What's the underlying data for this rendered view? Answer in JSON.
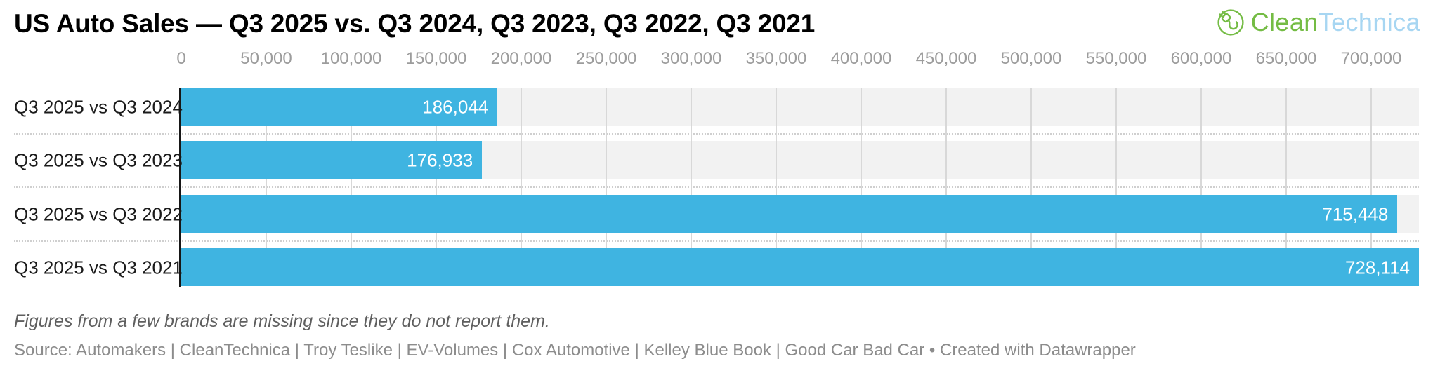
{
  "header": {
    "title": "US Auto Sales — Q3 2025 vs. Q3 2024, Q3 2023, Q3 2022, Q3 2021"
  },
  "logo": {
    "brand_part_green": "Clean",
    "brand_part_blue": "Technica",
    "icon": "plug-circle-icon",
    "green_color": "#74bc44",
    "blue_color": "#a7d6f2"
  },
  "chart_data": {
    "type": "bar",
    "orientation": "horizontal",
    "title": "US Auto Sales — Q3 2025 vs. Q3 2024, Q3 2023, Q3 2022, Q3 2021",
    "categories": [
      "Q3 2025 vs Q3 2024",
      "Q3 2025 vs Q3 2023",
      "Q3 2025 vs Q3 2022",
      "Q3 2025 vs Q3 2021"
    ],
    "values": [
      186044,
      176933,
      715448,
      728114
    ],
    "value_labels": [
      "186,044",
      "176,933",
      "715,448",
      "728,114"
    ],
    "axis": {
      "min": 0,
      "max": 728114,
      "tick_step": 50000,
      "tick_values": [
        0,
        50000,
        100000,
        150000,
        200000,
        250000,
        300000,
        350000,
        400000,
        450000,
        500000,
        550000,
        600000,
        650000,
        700000
      ],
      "tick_labels": [
        "0",
        "50,000",
        "100,000",
        "150,000",
        "200,000",
        "250,000",
        "300,000",
        "350,000",
        "400,000",
        "450,000",
        "500,000",
        "550,000",
        "600,000",
        "650,000",
        "700,000"
      ]
    },
    "bar_color": "#3fb4e1",
    "row_band_color": "#f2f2f2",
    "grid": true,
    "legend": "none"
  },
  "footer": {
    "note": "Figures from a few brands are missing since they do not report them.",
    "source": "Source: Automakers | CleanTechnica | Troy Teslike | EV-Volumes | Cox Automotive | Kelley Blue Book | Good Car Bad Car • Created with Datawrapper"
  }
}
